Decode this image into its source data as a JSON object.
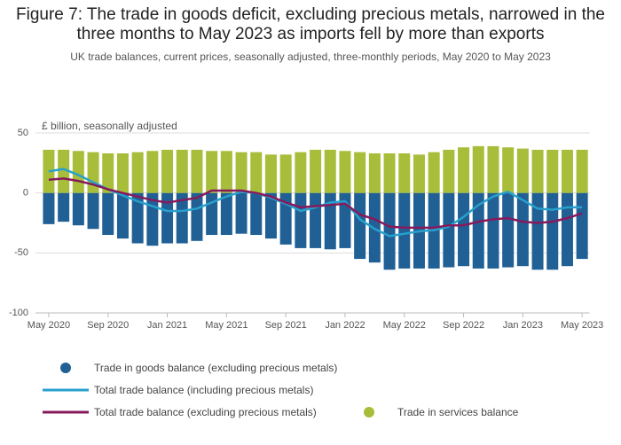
{
  "chart_data": {
    "type": "bar",
    "title": "Figure 7: The trade in goods deficit, excluding precious metals, narrowed in the three months to May 2023 as imports fell by more than exports",
    "subtitle": "UK trade balances, current prices, seasonally adjusted, three-monthly periods, May 2020 to May 2023",
    "y_label": "£ billion, seasonally adjusted",
    "categories": [
      "May 2020",
      null,
      null,
      null,
      "Sep 2020",
      null,
      null,
      null,
      "Jan 2021",
      null,
      null,
      null,
      "May 2021",
      null,
      null,
      null,
      "Sep 2021",
      null,
      null,
      null,
      "Jan 2022",
      null,
      null,
      null,
      "May 2022",
      null,
      null,
      null,
      "Sep 2022",
      null,
      null,
      null,
      "Jan 2023",
      null,
      null,
      null,
      "May 2023"
    ],
    "series": [
      {
        "name": "Trade in goods balance (excluding precious metals)",
        "kind": "bar",
        "color": "#206095",
        "values": [
          -26,
          -24,
          -27,
          -30,
          -35,
          -38,
          -42,
          -44,
          -42,
          -42,
          -40,
          -35,
          -35,
          -34,
          -35,
          -38,
          -43,
          -46,
          -46,
          -47,
          -46,
          -55,
          -58,
          -64,
          -63,
          -63,
          -63,
          -62,
          -61,
          -63,
          -63,
          -62,
          -61,
          -64,
          -64,
          -61,
          -55
        ]
      },
      {
        "name": "Total trade balance (including precious metals)",
        "kind": "line",
        "color": "#27a0cc",
        "values": [
          18,
          20,
          15,
          9,
          3,
          -2,
          -7,
          -11,
          -15,
          -15,
          -13,
          -8,
          -3,
          1,
          0,
          -4,
          -9,
          -15,
          -12,
          -8,
          -7,
          -22,
          -30,
          -36,
          -34,
          -32,
          -31,
          -28,
          -20,
          -10,
          -3,
          1,
          -6,
          -13,
          -14,
          -12,
          -12
        ]
      },
      {
        "name": "Total trade balance (excluding precious metals)",
        "kind": "line",
        "color": "#871a5b",
        "values": [
          11,
          12,
          10,
          7,
          3,
          0,
          -3,
          -6,
          -8,
          -6,
          -4,
          2,
          2,
          2,
          0,
          -3,
          -8,
          -12,
          -11,
          -10,
          -9,
          -18,
          -22,
          -28,
          -29,
          -29,
          -29,
          -27,
          -27,
          -24,
          -22,
          -21,
          -24,
          -25,
          -24,
          -21,
          -17
        ]
      },
      {
        "name": "Trade in services balance",
        "kind": "bar",
        "color": "#a8bd3a",
        "values": [
          36,
          36,
          35,
          34,
          33,
          33,
          34,
          35,
          36,
          36,
          36,
          35,
          35,
          34,
          34,
          32,
          32,
          34,
          36,
          36,
          35,
          34,
          33,
          33,
          33,
          32,
          34,
          36,
          38,
          39,
          39,
          38,
          37,
          36,
          36,
          36,
          36
        ]
      }
    ],
    "ylim": [
      -100,
      50
    ],
    "yticks": [
      -100,
      -50,
      0,
      50
    ],
    "grid": true
  }
}
